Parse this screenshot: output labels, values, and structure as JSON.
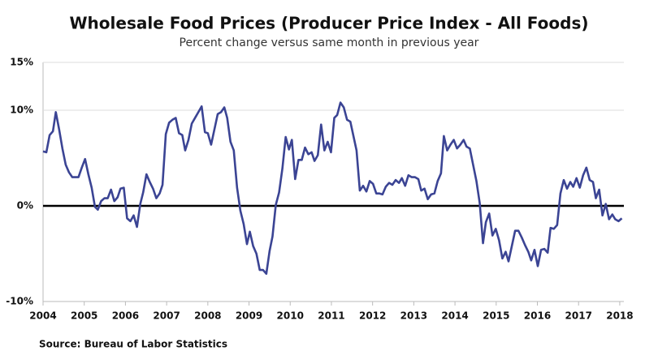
{
  "chart_data": {
    "type": "line",
    "title": "Wholesale Food Prices (Producer Price Index - All Foods)",
    "subtitle": "Percent change versus same month in previous year",
    "source": "Source: Bureau of Labor Statistics",
    "x": [
      2004.0,
      2004.08,
      2004.16,
      2004.24,
      2004.31,
      2004.39,
      2004.47,
      2004.55,
      2004.63,
      2004.71,
      2004.79,
      2004.86,
      2004.94,
      2005.02,
      2005.1,
      2005.18,
      2005.26,
      2005.33,
      2005.41,
      2005.49,
      2005.57,
      2005.65,
      2005.73,
      2005.81,
      2005.88,
      2005.96,
      2006.04,
      2006.12,
      2006.2,
      2006.28,
      2006.36,
      2006.43,
      2006.51,
      2006.59,
      2006.67,
      2006.75,
      2006.83,
      2006.9,
      2006.98,
      2007.06,
      2007.14,
      2007.22,
      2007.3,
      2007.38,
      2007.45,
      2007.53,
      2007.61,
      2007.69,
      2007.77,
      2007.85,
      2007.93,
      2008.0,
      2008.08,
      2008.16,
      2008.24,
      2008.32,
      2008.4,
      2008.47,
      2008.55,
      2008.63,
      2008.71,
      2008.79,
      2008.87,
      2008.95,
      2009.02,
      2009.1,
      2009.18,
      2009.26,
      2009.34,
      2009.42,
      2009.5,
      2009.57,
      2009.65,
      2009.73,
      2009.81,
      2009.89,
      2009.97,
      2010.04,
      2010.12,
      2010.2,
      2010.28,
      2010.36,
      2010.44,
      2010.52,
      2010.59,
      2010.67,
      2010.75,
      2010.83,
      2010.91,
      2010.99,
      2011.07,
      2011.14,
      2011.22,
      2011.3,
      2011.38,
      2011.46,
      2011.54,
      2011.61,
      2011.69,
      2011.77,
      2011.85,
      2011.93,
      2012.01,
      2012.09,
      2012.16,
      2012.24,
      2012.32,
      2012.4,
      2012.48,
      2012.56,
      2012.64,
      2012.71,
      2012.79,
      2012.87,
      2012.95,
      2013.03,
      2013.11,
      2013.18,
      2013.26,
      2013.34,
      2013.42,
      2013.5,
      2013.58,
      2013.66,
      2013.73,
      2013.81,
      2013.89,
      2013.97,
      2014.05,
      2014.13,
      2014.21,
      2014.28,
      2014.36,
      2014.44,
      2014.52,
      2014.6,
      2014.68,
      2014.75,
      2014.83,
      2014.91,
      2014.99,
      2015.07,
      2015.15,
      2015.23,
      2015.3,
      2015.38,
      2015.46,
      2015.54,
      2015.62,
      2015.7,
      2015.78,
      2015.85,
      2015.93,
      2016.01,
      2016.09,
      2016.17,
      2016.25,
      2016.32,
      2016.4,
      2016.48,
      2016.56,
      2016.64,
      2016.72,
      2016.8,
      2016.87,
      2016.95,
      2017.03,
      2017.11,
      2017.19,
      2017.27,
      2017.35,
      2017.42,
      2017.5,
      2017.58,
      2017.66,
      2017.74,
      2017.82,
      2017.89,
      2017.97,
      2018.05
    ],
    "series": [
      {
        "name": "PPI All Foods",
        "color": "#3b4494",
        "values": [
          5.7,
          5.6,
          7.4,
          7.8,
          9.8,
          8.0,
          6.0,
          4.3,
          3.5,
          3.0,
          3.0,
          3.0,
          4.0,
          4.9,
          3.3,
          1.9,
          -0.1,
          -0.4,
          0.5,
          0.8,
          0.8,
          1.7,
          0.5,
          0.9,
          1.8,
          1.9,
          -1.3,
          -1.6,
          -1.0,
          -2.2,
          0.2,
          1.4,
          3.3,
          2.5,
          1.8,
          0.8,
          1.3,
          2.2,
          7.5,
          8.7,
          9.0,
          9.2,
          7.6,
          7.4,
          5.8,
          6.9,
          8.6,
          9.2,
          9.8,
          10.4,
          7.7,
          7.6,
          6.4,
          8.0,
          9.6,
          9.8,
          10.3,
          9.2,
          6.7,
          5.8,
          1.9,
          -0.5,
          -1.9,
          -4.0,
          -2.7,
          -4.2,
          -5.0,
          -6.7,
          -6.7,
          -7.1,
          -4.7,
          -3.2,
          0.1,
          1.4,
          3.9,
          7.2,
          5.9,
          6.9,
          2.8,
          4.8,
          4.8,
          6.1,
          5.4,
          5.6,
          4.7,
          5.3,
          8.5,
          5.8,
          6.7,
          5.6,
          9.2,
          9.5,
          10.8,
          10.3,
          9.0,
          8.8,
          7.2,
          5.8,
          1.6,
          2.1,
          1.5,
          2.6,
          2.3,
          1.3,
          1.3,
          1.2,
          2.0,
          2.4,
          2.2,
          2.7,
          2.4,
          2.9,
          2.1,
          3.2,
          3.0,
          3.0,
          2.8,
          1.6,
          1.8,
          0.7,
          1.2,
          1.3,
          2.6,
          3.4,
          7.3,
          5.8,
          6.4,
          6.9,
          6.0,
          6.4,
          6.9,
          6.2,
          6.0,
          4.3,
          2.6,
          0.3,
          -3.9,
          -1.7,
          -0.8,
          -3.1,
          -2.4,
          -3.6,
          -5.5,
          -4.8,
          -5.8,
          -4.2,
          -2.6,
          -2.6,
          -3.3,
          -4.1,
          -4.8,
          -5.7,
          -4.6,
          -6.3,
          -4.6,
          -4.5,
          -4.9,
          -2.3,
          -2.4,
          -2.0,
          1.3,
          2.7,
          1.8,
          2.5,
          2.0,
          2.9,
          1.9,
          3.2,
          4.0,
          2.7,
          2.5,
          0.8,
          1.7,
          -1.0,
          0.2,
          -1.4,
          -0.9,
          -1.4,
          -1.6,
          -1.3
        ]
      }
    ],
    "xlim": [
      2004,
      2018.1
    ],
    "xticks": [
      2004,
      2005,
      2006,
      2007,
      2008,
      2009,
      2010,
      2011,
      2012,
      2013,
      2014,
      2015,
      2016,
      2017,
      2018
    ],
    "ylim": [
      -10,
      15
    ],
    "yticks": [
      {
        "value": -10,
        "label": "-10%"
      },
      {
        "value": 0,
        "label": "0%"
      },
      {
        "value": 10,
        "label": "10%"
      },
      {
        "value": 15,
        "label": "15%"
      }
    ],
    "grid": true
  }
}
